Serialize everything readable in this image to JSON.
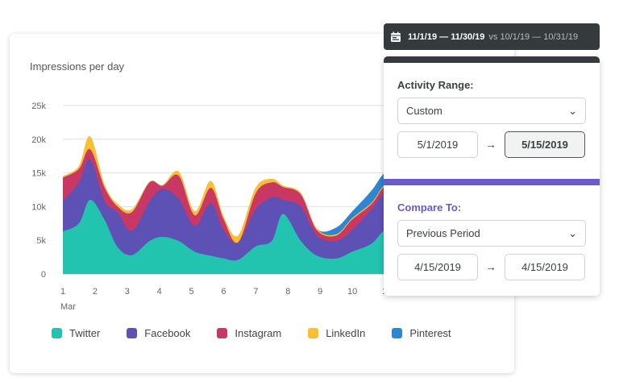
{
  "chart_title": "Impressions per day",
  "chart_data": {
    "type": "area",
    "stacked": true,
    "title": "Impressions per day",
    "ylim": [
      0,
      25
    ],
    "yticks": [
      "0",
      "5k",
      "10k",
      "15k",
      "20k",
      "25k"
    ],
    "ytick_values": [
      0,
      5,
      10,
      15,
      20,
      25
    ],
    "xticks": [
      "1",
      "2",
      "3",
      "4",
      "5",
      "6",
      "7",
      "8",
      "9",
      "10",
      "1"
    ],
    "xtick_values": [
      1,
      2,
      3,
      4,
      5,
      6,
      7,
      8,
      9,
      10,
      11
    ],
    "xsublabel": "Mar",
    "grid": true,
    "legend": "bottom",
    "x": [
      1,
      1.5,
      1.85,
      2.3,
      2.7,
      3.15,
      3.7,
      4.1,
      4.6,
      5.1,
      5.6,
      6,
      6.45,
      7,
      7.5,
      7.85,
      8.4,
      8.9,
      9.5,
      10,
      10.6,
      11,
      11.5
    ],
    "series": [
      {
        "name": "Twitter",
        "color": "#22c4b0",
        "values": [
          6.3,
          7.5,
          11,
          8,
          4,
          2.8,
          4.9,
          5.5,
          4.9,
          3.3,
          2.7,
          2.3,
          2.1,
          4.1,
          4.9,
          8.9,
          4.9,
          2.7,
          2.3,
          3.3,
          4.5,
          6.5,
          7.5
        ]
      },
      {
        "name": "Facebook",
        "color": "#5e51b5",
        "values": [
          4.5,
          6.1,
          6,
          2.8,
          5.2,
          3.6,
          5.9,
          7.1,
          6.3,
          3.8,
          7.8,
          4.2,
          2.6,
          5.5,
          6.5,
          2.1,
          5.1,
          3,
          2.6,
          3.2,
          5.1,
          5.5,
          5.5
        ]
      },
      {
        "name": "Instagram",
        "color": "#c93864",
        "values": [
          3.5,
          2,
          1.5,
          2,
          0.8,
          2.8,
          2.8,
          0.5,
          3.4,
          1.6,
          2.3,
          1.6,
          0,
          2.4,
          2.2,
          1.9,
          1.8,
          0.8,
          0.8,
          1.6,
          0.8,
          1,
          1
        ]
      },
      {
        "name": "LinkedIn",
        "color": "#fcc02e",
        "values": [
          0.2,
          0.4,
          1.9,
          0.4,
          0.4,
          0.4,
          0.1,
          0.1,
          0.6,
          0.6,
          1,
          0.4,
          1,
          0.8,
          0.5,
          0.2,
          0.2,
          0.2,
          0.2,
          0.2,
          0.2,
          0.2,
          0.2
        ]
      },
      {
        "name": "Pinterest",
        "color": "#2e86d1",
        "values": [
          0,
          0,
          0,
          0,
          0,
          0,
          0,
          0,
          0,
          0,
          0,
          0,
          0,
          0,
          0,
          0,
          0,
          0,
          1,
          1,
          1.8,
          1.8,
          2
        ]
      }
    ]
  },
  "header": {
    "icon": "calendar-icon",
    "range": "11/1/19 — 11/30/19",
    "compare": "vs 10/1/19 — 10/31/19"
  },
  "panel": {
    "activity_label": "Activity Range:",
    "activity_select": "Custom",
    "activity_start": "5/1/2019",
    "activity_end": "5/15/2019",
    "arrow": "→",
    "compare_label": "Compare To:",
    "compare_select": "Previous Period",
    "compare_start": "4/15/2019",
    "compare_end": "4/15/2019",
    "accent": "#6a5acd"
  }
}
